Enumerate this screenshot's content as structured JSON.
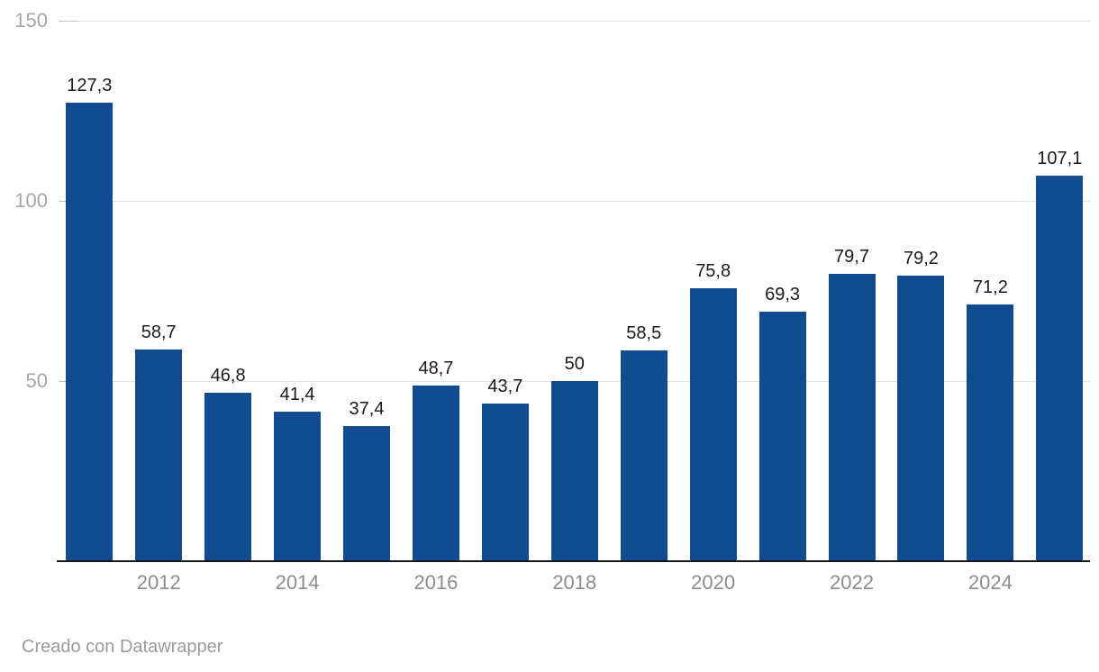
{
  "chart_data": {
    "type": "bar",
    "title": "",
    "categories": [
      "2011",
      "2012",
      "2013",
      "2014",
      "2015",
      "2016",
      "2017",
      "2018",
      "2019",
      "2020",
      "2021",
      "2022",
      "2023",
      "2024",
      "2025"
    ],
    "values": [
      127.3,
      58.7,
      46.8,
      41.4,
      37.4,
      48.7,
      43.7,
      50,
      58.5,
      75.8,
      69.3,
      79.7,
      79.2,
      71.2,
      107.1
    ],
    "value_labels": [
      "127,3",
      "58,7",
      "46,8",
      "41,4",
      "37,4",
      "48,7",
      "43,7",
      "50",
      "58,5",
      "75,8",
      "69,3",
      "79,7",
      "79,2",
      "71,2",
      "107,1"
    ],
    "decimal_separator": ",",
    "x_tick_labels": [
      "2012",
      "2014",
      "2016",
      "2018",
      "2020",
      "2022",
      "2024"
    ],
    "x_tick_indexes": [
      1,
      3,
      5,
      7,
      9,
      11,
      13
    ],
    "y_ticks": [
      150,
      100,
      50
    ],
    "y_tick_labels": [
      "150",
      "100",
      "50"
    ],
    "ylim": [
      0,
      150
    ],
    "grid": true,
    "legend": "none"
  },
  "footer": {
    "credit": "Creado con Datawrapper"
  },
  "colors": {
    "bar": "#114c90",
    "gridline": "#e2e2e2",
    "tick_dash": "#c4c4c4",
    "axis_line": "#161616",
    "value_label": "#1a1a1a",
    "x_label": "#8c8c8c",
    "y_label": "#a6a6a6",
    "credit": "#9b9b9b",
    "background": "#ffffff"
  }
}
